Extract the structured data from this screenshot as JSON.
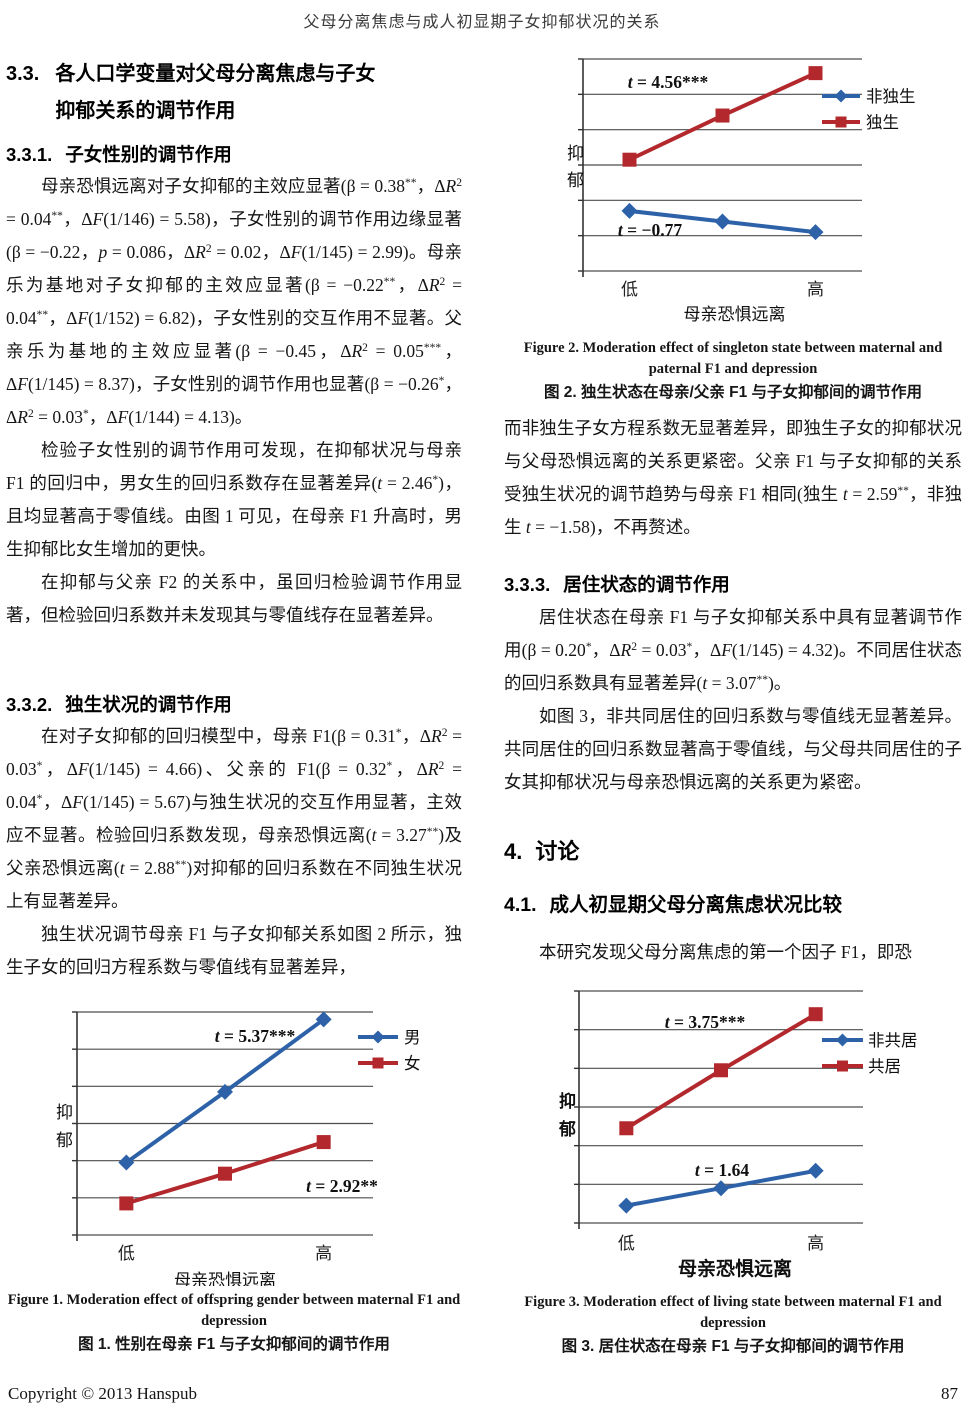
{
  "header": {
    "title": "父母分离焦虑与成人初显期子女抑郁状况的关系"
  },
  "left_column": {
    "h33": {
      "number": "3.3.",
      "line1": "各人口学变量对父母分离焦虑与子女",
      "line2": "抑郁关系的调节作用"
    },
    "h331": {
      "number": "3.3.1.",
      "text": "子女性别的调节作用"
    },
    "p1": "母亲恐惧远离对子女抑郁的主效应显著(β = 0.38<sup>**</sup>，Δ<i>R</i><sup>2</sup> = 0.04<sup>**</sup>，Δ<i>F</i>(1/146) = 5.58)，子女性别的调节作用边缘显著(β = −0.22，<i>p</i> = 0.086，Δ<i>R</i><sup>2</sup> = 0.02，Δ<i>F</i>(1/145) = 2.99)。母亲乐为基地对子女抑郁的主效应显著(β = −0.22<sup>**</sup>，Δ<i>R</i><sup>2</sup> = 0.04<sup>**</sup>，Δ<i>F</i>(1/152) = 6.82)，子女性别的交互作用不显著。父亲乐为基地的主效应显著(β = −0.45，Δ<i>R</i><sup>2</sup> = 0.05<sup>***</sup>，Δ<i>F</i>(1/145) = 8.37)，子女性别的调节作用也显著(β = −0.26<sup>*</sup>，Δ<i>R</i><sup>2</sup> = 0.03<sup>*</sup>，Δ<i>F</i>(1/144) = 4.13)。",
    "p2": "检验子女性别的调节作用可发现，在抑郁状况与母亲 F1 的回归中，男女生的回归系数存在显著差异(<i>t</i> = 2.46<sup>*</sup>)，且均显著高于零值线。由图 1 可见，在母亲 F1 升高时，男生抑郁比女生增加的更快。",
    "p3": "在抑郁与父亲 F2 的关系中，虽回归检验调节作用显著，但检验回归系数并未发现其与零值线存在显著差异。",
    "h332": {
      "number": "3.3.2.",
      "text": "独生状况的调节作用"
    },
    "p4": "在对子女抑郁的回归模型中，母亲 F1(β = 0.31<sup>*</sup>，Δ<i>R</i><sup>2</sup> = 0.03<sup>*</sup>，Δ<i>F</i>(1/145) = 4.66)、父亲的 F1(β = 0.32<sup>*</sup>，Δ<i>R</i><sup>2</sup> = 0.04<sup>*</sup>，Δ<i>F</i>(1/145) = 5.67)与独生状况的交互作用显著，主效应不显著。检验回归系数发现，母亲恐惧远离(<i>t</i> = 3.27<sup>**</sup>)及父亲恐惧远离(<i>t</i> = 2.88<sup>**</sup>)对抑郁的回归系数在不同独生状况上有显著差异。",
    "p5": "独生状况调节母亲 F1 与子女抑郁关系如图 2 所示，独生子女的回归方程系数与零值线有显著差异，"
  },
  "right_column": {
    "p6": "而非独生子女方程系数无显著差异，即独生子女的抑郁状况与父母恐惧远离的关系更紧密。父亲 F1 与子女抑郁的关系受独生状况的调节趋势与母亲 F1 相同(独生 <i>t</i> = 2.59<sup>**</sup>，非独生 <i>t</i> = −1.58)，不再赘述。",
    "h333": {
      "number": "3.3.3.",
      "text": "居住状态的调节作用"
    },
    "p7": "居住状态在母亲 F1 与子女抑郁关系中具有显著调节作用(β = 0.20<sup>*</sup>，Δ<i>R</i><sup>2</sup> = 0.03<sup>*</sup>，Δ<i>F</i>(1/145) = 4.32)。不同居住状态的回归系数具有显著差异(<i>t</i> = 3.07<sup>**</sup>)。",
    "p8": "如图 3，非共同居住的回归系数与零值线无显著差异。共同居住的回归系数显著高于零值线，与父母共同居住的子女其抑郁状况与母亲恐惧远离的关系更为紧密。",
    "h4": {
      "number": "4.",
      "text": "讨论"
    },
    "h41": {
      "number": "4.1.",
      "text": "成人初显期父母分离焦虑状况比较"
    },
    "p9": "本研究发现父母分离焦虑的第一个因子 F1，即恐"
  },
  "footer": {
    "copyright": "Copyright © 2013 Hanspub",
    "page_number": "87"
  },
  "chart_data": [
    {
      "id": "fig1",
      "type": "line",
      "categories": [
        "低",
        "",
        "高"
      ],
      "xlabel": "母亲恐惧远离",
      "ylabel": "抑郁",
      "ylim": [
        0,
        6
      ],
      "gridlines": 7,
      "grid": true,
      "legend_position": "top-right",
      "series": [
        {
          "name": "男",
          "color": "#2e62a8",
          "marker": "diamond",
          "values": [
            1.95,
            3.85,
            5.8
          ]
        },
        {
          "name": "女",
          "color": "#b3282d",
          "marker": "square",
          "values": [
            0.85,
            1.65,
            2.5
          ]
        }
      ],
      "annotations": [
        {
          "text": "t = 5.37***",
          "series": "男"
        },
        {
          "text": "t = 2.92**",
          "series": "女"
        }
      ],
      "caption_en": "Figure 1. Moderation effect of offspring gender between maternal F1 and depression",
      "caption_zh": "图 1. 性别在母亲 F1 与子女抑郁间的调节作用"
    },
    {
      "id": "fig2",
      "type": "line",
      "categories": [
        "低",
        "",
        "高"
      ],
      "xlabel": "母亲恐惧远离",
      "ylabel": "抑郁",
      "ylim": [
        0,
        6
      ],
      "gridlines": 7,
      "grid": true,
      "legend_position": "top-right",
      "series": [
        {
          "name": "非独生",
          "color": "#2e62a8",
          "marker": "diamond",
          "values": [
            1.7,
            1.4,
            1.1
          ]
        },
        {
          "name": "独生",
          "color": "#b3282d",
          "marker": "square",
          "values": [
            3.15,
            4.4,
            5.6
          ]
        }
      ],
      "annotations": [
        {
          "text": "t = 4.56***",
          "series": "独生"
        },
        {
          "text": "t = −0.77",
          "series": "非独生"
        }
      ],
      "caption_en": "Figure 2. Moderation effect of singleton state between maternal and paternal F1 and depression",
      "caption_zh": "图 2. 独生状态在母亲/父亲 F1 与子女抑郁间的调节作用"
    },
    {
      "id": "fig3",
      "type": "line",
      "categories": [
        "低",
        "",
        "高"
      ],
      "xlabel": "母亲恐惧远离",
      "ylabel": "抑郁",
      "ylim": [
        0,
        6
      ],
      "gridlines": 7,
      "grid": true,
      "legend_position": "top-right",
      "series": [
        {
          "name": "非共居",
          "color": "#2e62a8",
          "marker": "diamond",
          "values": [
            0.45,
            0.9,
            1.35
          ]
        },
        {
          "name": "共居",
          "color": "#b3282d",
          "marker": "square",
          "values": [
            2.45,
            3.95,
            5.4
          ]
        }
      ],
      "annotations": [
        {
          "text": "t = 3.75***",
          "series": "共居"
        },
        {
          "text": "t = 1.64",
          "series": "非共居"
        }
      ],
      "caption_en": "Figure 3. Moderation effect of living state between maternal F1 and depression",
      "caption_zh": "图 3. 居住状态在母亲 F1 与子女抑郁间的调节作用"
    }
  ]
}
